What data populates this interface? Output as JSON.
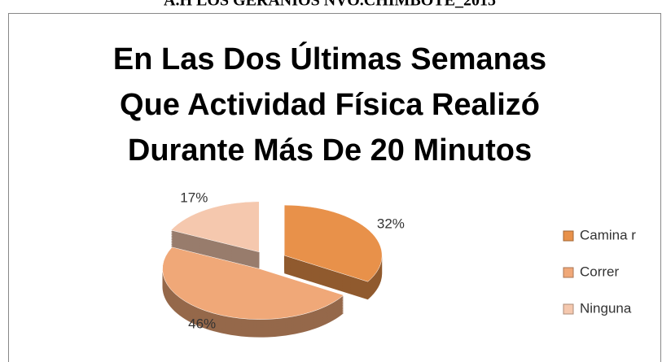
{
  "header": "A.H LOS GERANIOS NVO.CHIMBOTE_2015",
  "chart_data": {
    "type": "pie3d",
    "title": [
      "En Las Dos Últimas Semanas",
      "Que Actividad Física Realizó",
      "Durante Más De 20 Minutos"
    ],
    "categories": [
      "Camina r",
      "Correr",
      "Ninguna"
    ],
    "values": [
      32,
      46,
      17
    ],
    "colors": [
      "#e8914a",
      "#f0a878",
      "#f5c8ae"
    ],
    "legend": "right"
  }
}
